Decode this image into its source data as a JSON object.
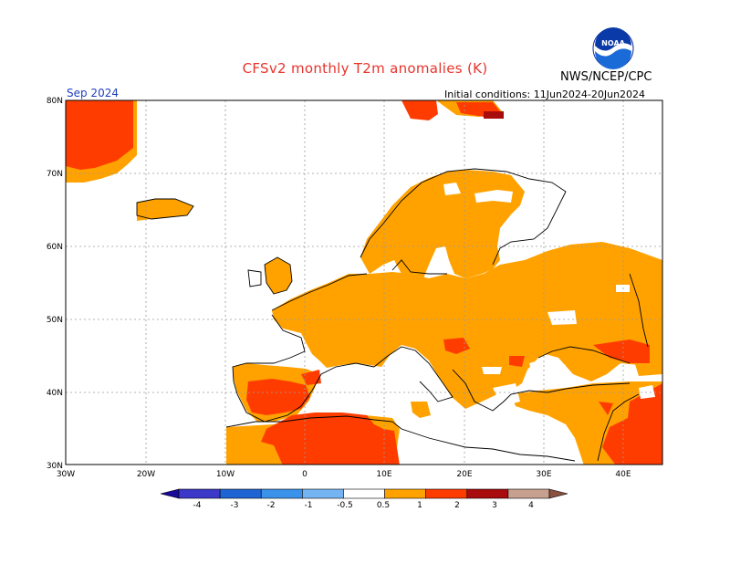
{
  "header": {
    "title": "CFSv2 monthly T2m anomalies (K)",
    "agency": "NWS/NCEP/CPC",
    "month": "Sep 2024",
    "initial_conditions": "Initial conditions: 11Jun2024-20Jun2024",
    "logo_text": "NOAA"
  },
  "axes": {
    "lat_labels": [
      "80N",
      "70N",
      "60N",
      "50N",
      "40N",
      "30N"
    ],
    "lon_labels": [
      "30W",
      "20W",
      "10W",
      "0",
      "10E",
      "20E",
      "30E",
      "40E"
    ]
  },
  "colorbar": {
    "labels": [
      "-4",
      "-3",
      "-2",
      "-1",
      "-0.5",
      "0.5",
      "1",
      "2",
      "3",
      "4"
    ],
    "colors": [
      "#1a0a9a",
      "#3c38c8",
      "#1e64d2",
      "#3a92ea",
      "#74b4f2",
      "#ffffff",
      "#ffa200",
      "#ff3c00",
      "#a80c0c",
      "#c8a090",
      "#8a5040"
    ],
    "weak_warm": "#ffa200",
    "warm": "#ff3c00",
    "hot": "#a80c0c"
  }
}
